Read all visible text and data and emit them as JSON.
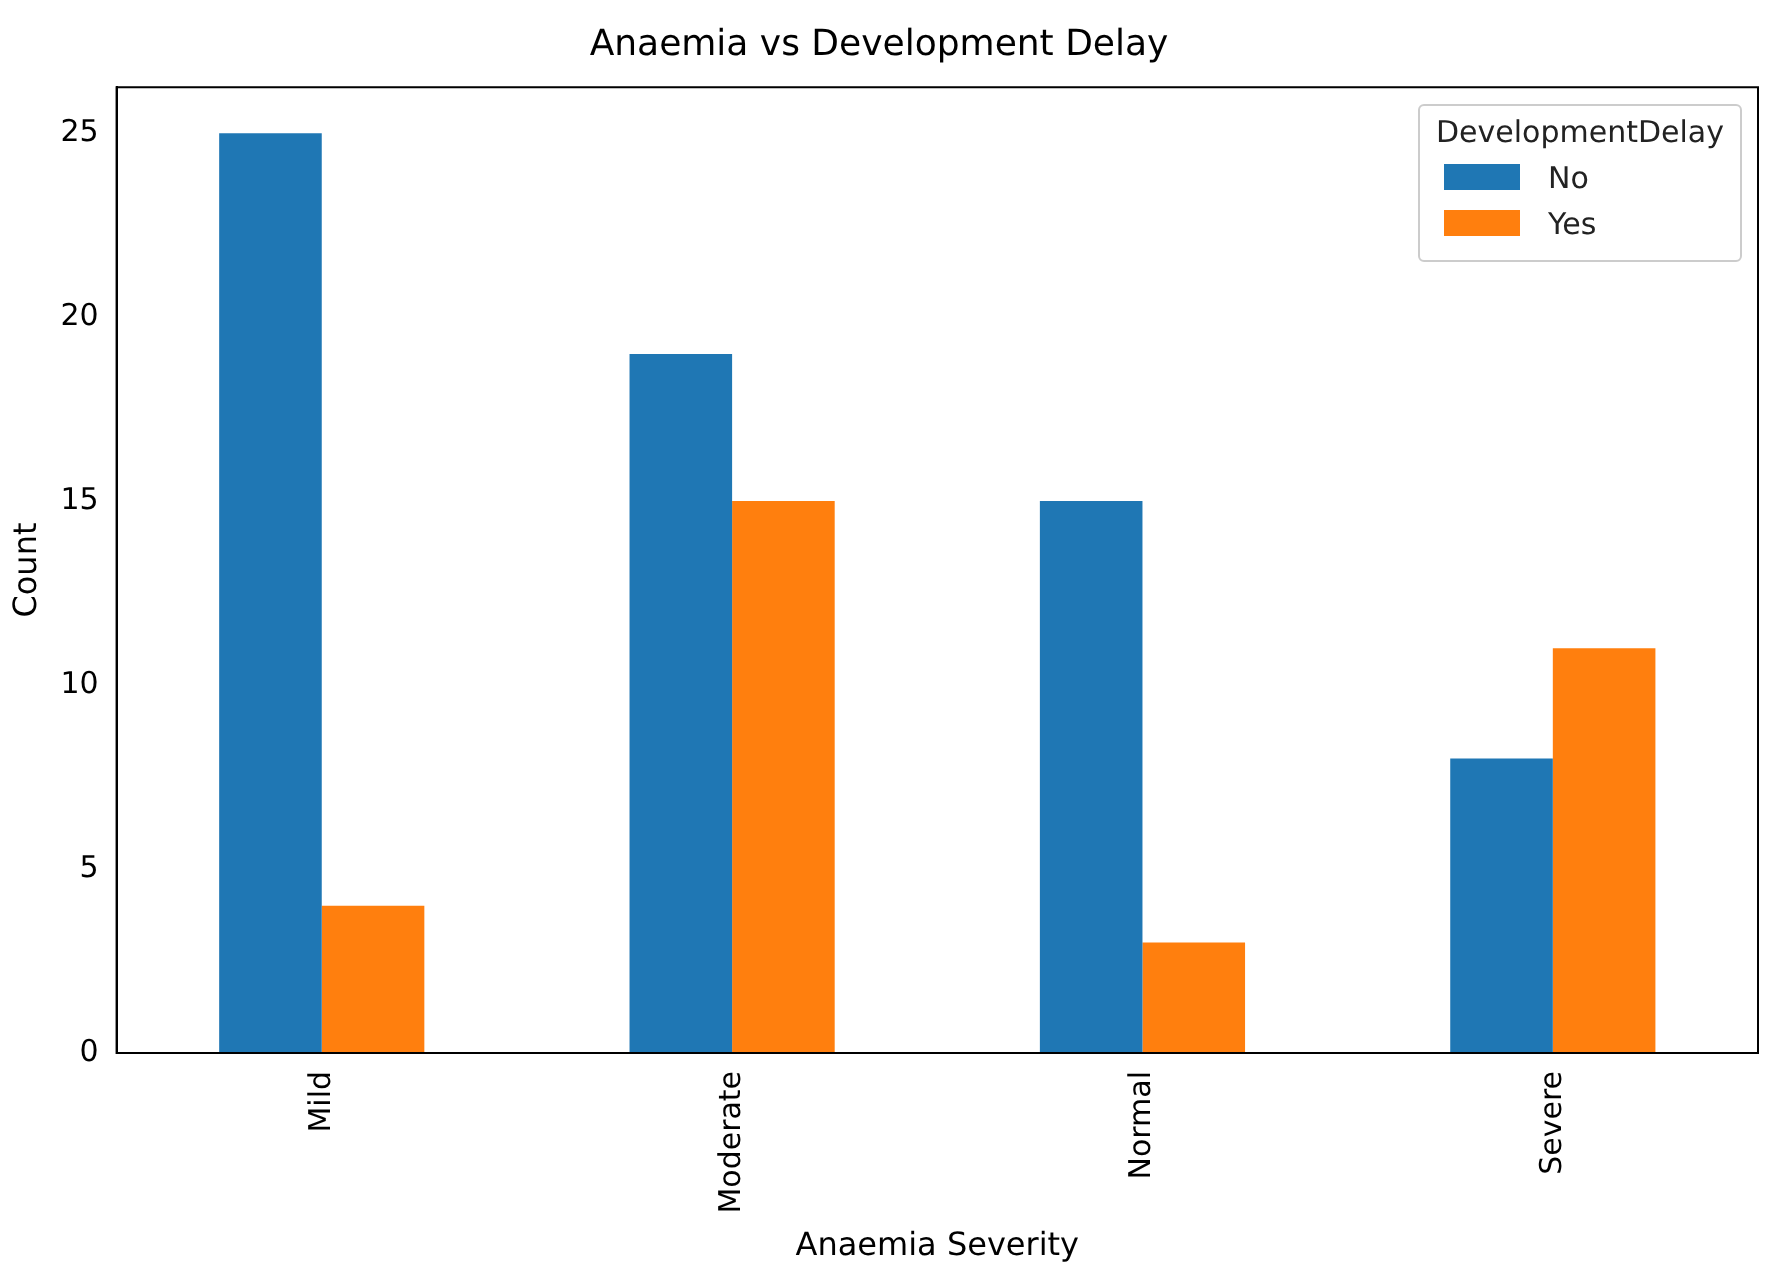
{
  "chart_data": {
    "type": "bar",
    "title": "Anaemia vs Development Delay",
    "xlabel": "Anaemia Severity",
    "ylabel": "Count",
    "legend_title": "DevelopmentDelay",
    "categories": [
      "Mild",
      "Moderate",
      "Normal",
      "Severe"
    ],
    "series": [
      {
        "name": "No",
        "color": "#1f77b4",
        "values": [
          25,
          19,
          15,
          8
        ]
      },
      {
        "name": "Yes",
        "color": "#ff7f0e",
        "values": [
          4,
          15,
          3,
          11
        ]
      }
    ],
    "ylim": [
      0,
      26.25
    ],
    "yticks": [
      0,
      5,
      10,
      15,
      20,
      25
    ],
    "grid": false,
    "legend": "top right"
  }
}
